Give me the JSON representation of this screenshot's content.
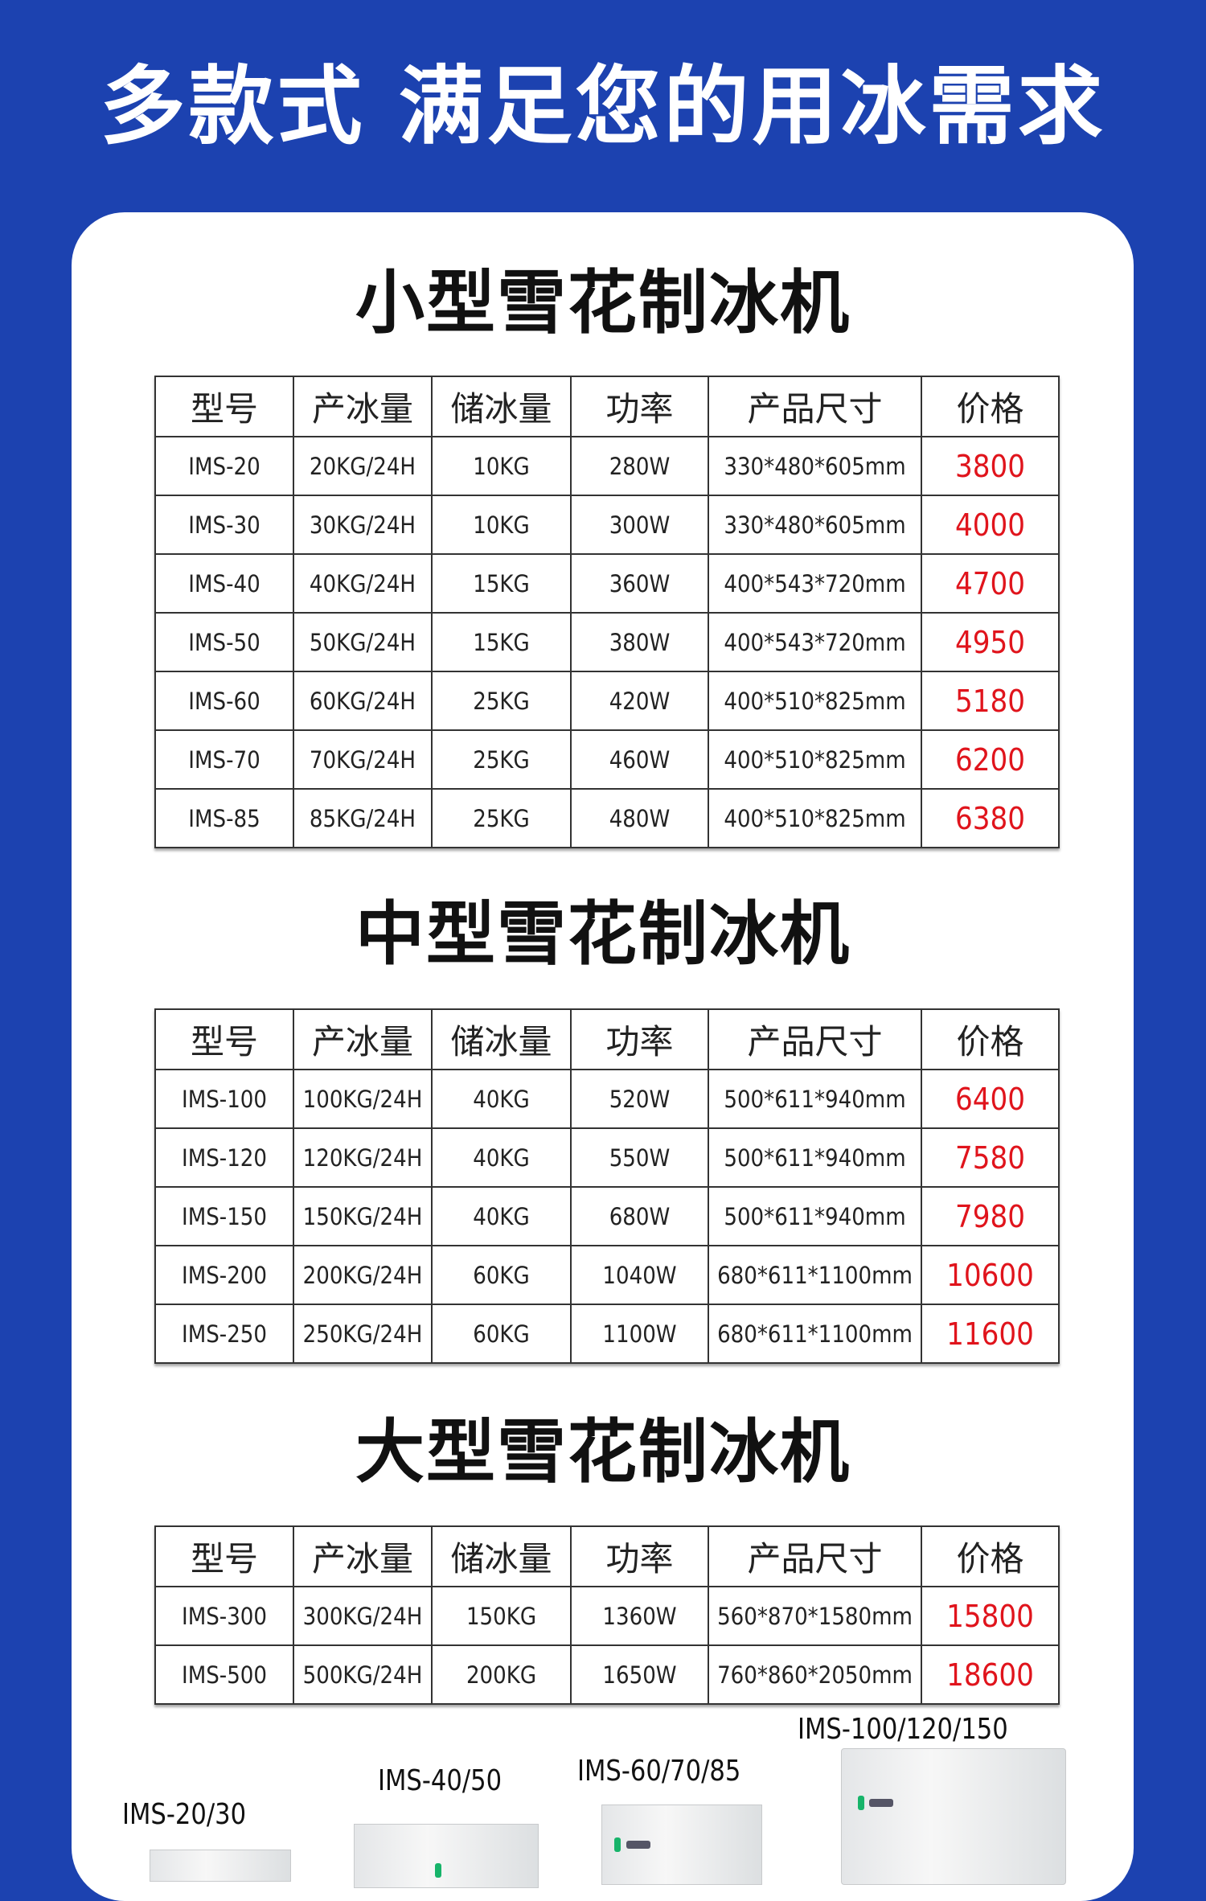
{
  "headline": "多款式 满足您的用冰需求",
  "colors": {
    "background": "#1c42b0",
    "price": "#e0141c"
  },
  "headers": [
    "型号",
    "产冰量",
    "储冰量",
    "功率",
    "产品尺寸",
    "价格"
  ],
  "sections": [
    {
      "title": "小型雪花制冰机",
      "rows": [
        [
          "IMS-20",
          "20KG/24H",
          "10KG",
          "280W",
          "330*480*605mm",
          "3800"
        ],
        [
          "IMS-30",
          "30KG/24H",
          "10KG",
          "300W",
          "330*480*605mm",
          "4000"
        ],
        [
          "IMS-40",
          "40KG/24H",
          "15KG",
          "360W",
          "400*543*720mm",
          "4700"
        ],
        [
          "IMS-50",
          "50KG/24H",
          "15KG",
          "380W",
          "400*543*720mm",
          "4950"
        ],
        [
          "IMS-60",
          "60KG/24H",
          "25KG",
          "420W",
          "400*510*825mm",
          "5180"
        ],
        [
          "IMS-70",
          "70KG/24H",
          "25KG",
          "460W",
          "400*510*825mm",
          "6200"
        ],
        [
          "IMS-85",
          "85KG/24H",
          "25KG",
          "480W",
          "400*510*825mm",
          "6380"
        ]
      ]
    },
    {
      "title": "中型雪花制冰机",
      "rows": [
        [
          "IMS-100",
          "100KG/24H",
          "40KG",
          "520W",
          "500*611*940mm",
          "6400"
        ],
        [
          "IMS-120",
          "120KG/24H",
          "40KG",
          "550W",
          "500*611*940mm",
          "7580"
        ],
        [
          "IMS-150",
          "150KG/24H",
          "40KG",
          "680W",
          "500*611*940mm",
          "7980"
        ],
        [
          "IMS-200",
          "200KG/24H",
          "60KG",
          "1040W",
          "680*611*1100mm",
          "10600"
        ],
        [
          "IMS-250",
          "250KG/24H",
          "60KG",
          "1100W",
          "680*611*1100mm",
          "11600"
        ]
      ]
    },
    {
      "title": "大型雪花制冰机",
      "rows": [
        [
          "IMS-300",
          "300KG/24H",
          "150KG",
          "1360W",
          "560*870*1580mm",
          "15800"
        ],
        [
          "IMS-500",
          "500KG/24H",
          "200KG",
          "1650W",
          "760*860*2050mm",
          "18600"
        ]
      ]
    }
  ],
  "product_labels": [
    "IMS-20/30",
    "IMS-40/50",
    "IMS-60/70/85",
    "IMS-100/120/150"
  ]
}
